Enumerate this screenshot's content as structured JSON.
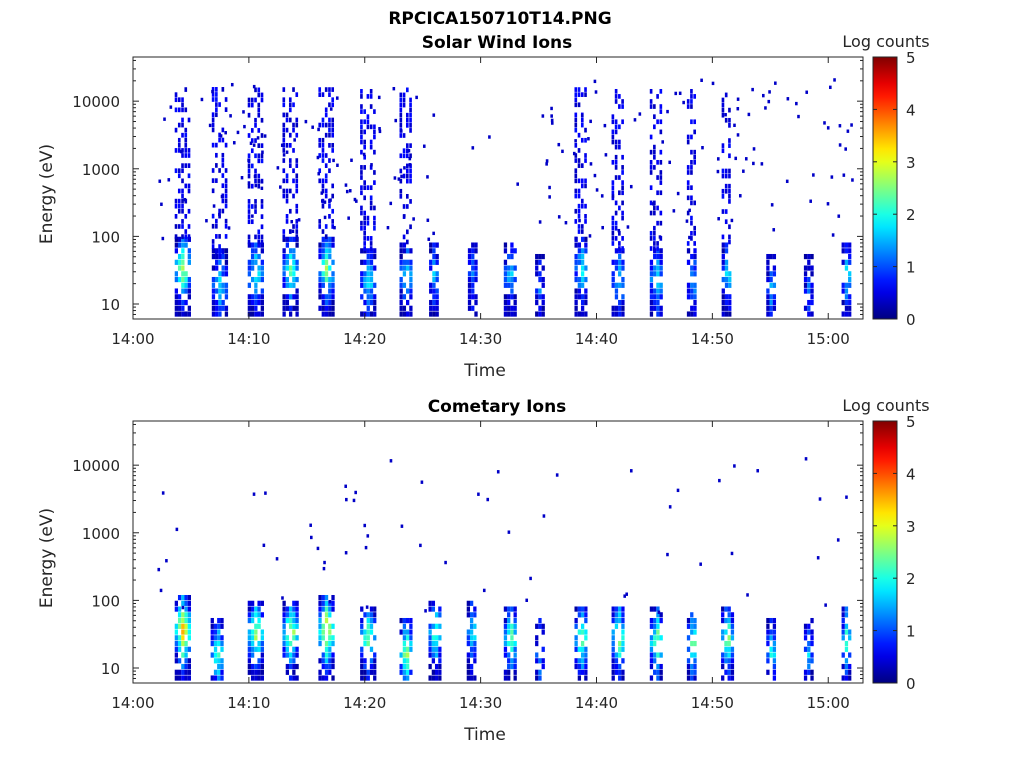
{
  "figure_title": "RPCICA150710T14.PNG",
  "chart_data": [
    {
      "type": "heatmap",
      "title": "Solar Wind Ions",
      "xlabel": "Time",
      "ylabel": "Energy (eV)",
      "x_ticks": [
        "14:00",
        "14:10",
        "14:20",
        "14:30",
        "14:40",
        "14:50",
        "15:00"
      ],
      "x_range_minutes": [
        0,
        63
      ],
      "y_scale": "log",
      "y_ticks": [
        "10",
        "100",
        "1000",
        "10000"
      ],
      "y_range": [
        6,
        45000
      ],
      "colorbar": {
        "label": "Log counts",
        "range": [
          0,
          5
        ],
        "ticks": [
          "0",
          "1",
          "2",
          "3",
          "4",
          "5"
        ],
        "colormap": "jet"
      },
      "bursts": [
        {
          "t": 4.2,
          "w": 1.2,
          "e": 30,
          "peak": 2.8,
          "hi": true
        },
        {
          "t": 7.4,
          "w": 1.2,
          "e": 18,
          "peak": 1.8,
          "hi": true
        },
        {
          "t": 10.5,
          "w": 1.2,
          "e": 25,
          "peak": 2.2,
          "hi": true
        },
        {
          "t": 13.5,
          "w": 1.2,
          "e": 30,
          "peak": 2.4,
          "hi": true
        },
        {
          "t": 16.6,
          "w": 1.2,
          "e": 30,
          "peak": 2.6,
          "hi": true
        },
        {
          "t": 20.2,
          "w": 1.2,
          "e": 20,
          "peak": 1.9,
          "hi": true
        },
        {
          "t": 23.5,
          "w": 1.0,
          "e": 25,
          "peak": 1.8,
          "hi": true
        },
        {
          "t": 25.9,
          "w": 0.7,
          "e": 25,
          "peak": 1.6,
          "hi": false
        },
        {
          "t": 29.2,
          "w": 0.6,
          "e": 25,
          "peak": 1.3,
          "hi": false
        },
        {
          "t": 32.5,
          "w": 1.0,
          "e": 25,
          "peak": 1.8,
          "hi": false
        },
        {
          "t": 35.0,
          "w": 0.6,
          "e": 15,
          "peak": 1.2,
          "hi": false
        },
        {
          "t": 38.6,
          "w": 1.0,
          "e": 30,
          "peak": 2.0,
          "hi": true
        },
        {
          "t": 41.8,
          "w": 1.0,
          "e": 20,
          "peak": 1.9,
          "hi": true
        },
        {
          "t": 45.1,
          "w": 1.0,
          "e": 20,
          "peak": 2.0,
          "hi": true
        },
        {
          "t": 48.2,
          "w": 0.8,
          "e": 20,
          "peak": 1.6,
          "hi": true
        },
        {
          "t": 51.2,
          "w": 0.8,
          "e": 25,
          "peak": 2.0,
          "hi": true
        },
        {
          "t": 55.0,
          "w": 0.7,
          "e": 15,
          "peak": 1.6,
          "hi": false
        },
        {
          "t": 58.2,
          "w": 0.6,
          "e": 15,
          "peak": 1.1,
          "hi": false
        },
        {
          "t": 61.5,
          "w": 0.7,
          "e": 25,
          "peak": 1.9,
          "hi": false
        }
      ]
    },
    {
      "type": "heatmap",
      "title": "Cometary Ions",
      "xlabel": "Time",
      "ylabel": "Energy (eV)",
      "x_ticks": [
        "14:00",
        "14:10",
        "14:20",
        "14:30",
        "14:40",
        "14:50",
        "15:00"
      ],
      "x_range_minutes": [
        0,
        63
      ],
      "y_scale": "log",
      "y_ticks": [
        "10",
        "100",
        "1000",
        "10000"
      ],
      "y_range": [
        6,
        45000
      ],
      "colorbar": {
        "label": "Log counts",
        "range": [
          0,
          5
        ],
        "ticks": [
          "0",
          "1",
          "2",
          "3",
          "4",
          "5"
        ],
        "colormap": "jet"
      },
      "bursts": [
        {
          "t": 4.2,
          "w": 1.2,
          "e": 32,
          "peak": 3.6,
          "hi": false
        },
        {
          "t": 7.2,
          "w": 1.0,
          "e": 15,
          "peak": 2.4,
          "hi": false
        },
        {
          "t": 10.5,
          "w": 1.2,
          "e": 30,
          "peak": 2.8,
          "hi": false
        },
        {
          "t": 13.5,
          "w": 1.2,
          "e": 30,
          "peak": 3.0,
          "hi": false
        },
        {
          "t": 16.6,
          "w": 1.2,
          "e": 32,
          "peak": 3.5,
          "hi": false
        },
        {
          "t": 20.2,
          "w": 1.2,
          "e": 25,
          "peak": 2.6,
          "hi": false
        },
        {
          "t": 23.5,
          "w": 1.0,
          "e": 15,
          "peak": 2.8,
          "hi": false
        },
        {
          "t": 26.0,
          "w": 1.0,
          "e": 30,
          "peak": 2.4,
          "hi": false
        },
        {
          "t": 29.2,
          "w": 0.8,
          "e": 30,
          "peak": 2.0,
          "hi": false
        },
        {
          "t": 32.5,
          "w": 1.0,
          "e": 25,
          "peak": 2.6,
          "hi": false
        },
        {
          "t": 35.0,
          "w": 0.6,
          "e": 15,
          "peak": 1.6,
          "hi": false
        },
        {
          "t": 38.6,
          "w": 1.0,
          "e": 25,
          "peak": 2.6,
          "hi": false
        },
        {
          "t": 41.8,
          "w": 1.0,
          "e": 25,
          "peak": 2.8,
          "hi": false
        },
        {
          "t": 45.1,
          "w": 1.0,
          "e": 22,
          "peak": 2.8,
          "hi": false
        },
        {
          "t": 48.2,
          "w": 0.8,
          "e": 20,
          "peak": 2.6,
          "hi": false
        },
        {
          "t": 51.2,
          "w": 0.9,
          "e": 25,
          "peak": 2.8,
          "hi": false
        },
        {
          "t": 55.0,
          "w": 0.7,
          "e": 15,
          "peak": 2.2,
          "hi": false
        },
        {
          "t": 58.2,
          "w": 0.6,
          "e": 15,
          "peak": 1.6,
          "hi": false
        },
        {
          "t": 61.5,
          "w": 0.7,
          "e": 25,
          "peak": 2.4,
          "hi": false
        }
      ]
    }
  ]
}
